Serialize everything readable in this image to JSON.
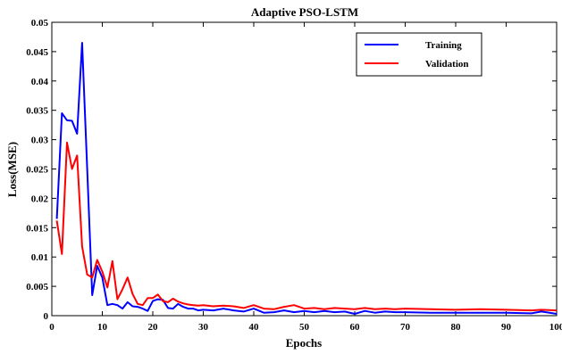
{
  "chart_data": {
    "type": "line",
    "title": "Adaptive PSO-LSTM",
    "xlabel": "Epochs",
    "ylabel": "Loss(MSE)",
    "xlim": [
      0,
      100
    ],
    "ylim": [
      0,
      0.05
    ],
    "xticks": [
      0,
      10,
      20,
      30,
      40,
      50,
      60,
      70,
      80,
      90,
      100
    ],
    "xtick_labels": [
      "0",
      "10",
      "20",
      "30",
      "40",
      "50",
      "60",
      "70",
      "80",
      "90",
      "100"
    ],
    "yticks": [
      0,
      0.005,
      0.01,
      0.015,
      0.02,
      0.025,
      0.03,
      0.035,
      0.04,
      0.045,
      0.05
    ],
    "ytick_labels": [
      "0",
      "0.005",
      "0.01",
      "0.015",
      "0.02",
      "0.025",
      "0.03",
      "0.035",
      "0.04",
      "0.045",
      "0.05"
    ],
    "grid": false,
    "legend_position": "top-right",
    "series": [
      {
        "name": "Training",
        "color": "#0000ff",
        "x": [
          1,
          2,
          3,
          4,
          5,
          6,
          7,
          8,
          9,
          10,
          11,
          12,
          13,
          14,
          15,
          16,
          17,
          18,
          19,
          20,
          21,
          22,
          23,
          24,
          25,
          26,
          27,
          28,
          29,
          30,
          32,
          34,
          36,
          38,
          40,
          42,
          44,
          46,
          48,
          50,
          52,
          54,
          56,
          58,
          60,
          62,
          64,
          66,
          68,
          70,
          75,
          80,
          85,
          90,
          95,
          97,
          100
        ],
        "y": [
          0.0165,
          0.0345,
          0.0333,
          0.0332,
          0.031,
          0.0465,
          0.025,
          0.0035,
          0.0085,
          0.0065,
          0.0018,
          0.002,
          0.0018,
          0.0012,
          0.0023,
          0.0016,
          0.0015,
          0.0012,
          0.0008,
          0.0025,
          0.0028,
          0.0027,
          0.0013,
          0.0012,
          0.002,
          0.0015,
          0.0012,
          0.0012,
          0.0009,
          0.001,
          0.0009,
          0.0012,
          0.0009,
          0.0007,
          0.0012,
          0.0005,
          0.0006,
          0.0009,
          0.0006,
          0.0008,
          0.0006,
          0.0008,
          0.0006,
          0.0007,
          0.0003,
          0.0008,
          0.0005,
          0.0007,
          0.0006,
          0.0006,
          0.0005,
          0.0005,
          0.0005,
          0.0005,
          0.0004,
          0.0007,
          0.0003
        ]
      },
      {
        "name": "Validation",
        "color": "#ff0000",
        "x": [
          1,
          2,
          3,
          4,
          5,
          6,
          7,
          8,
          9,
          10,
          11,
          12,
          13,
          14,
          15,
          16,
          17,
          18,
          19,
          20,
          21,
          22,
          23,
          24,
          25,
          26,
          27,
          28,
          29,
          30,
          32,
          34,
          36,
          38,
          40,
          42,
          44,
          46,
          48,
          50,
          52,
          54,
          56,
          58,
          60,
          62,
          64,
          66,
          68,
          70,
          75,
          80,
          85,
          90,
          95,
          97,
          100
        ],
        "y": [
          0.0162,
          0.0105,
          0.0295,
          0.025,
          0.0273,
          0.0118,
          0.007,
          0.0065,
          0.0095,
          0.0075,
          0.0048,
          0.0093,
          0.0028,
          0.0045,
          0.0065,
          0.0037,
          0.002,
          0.0018,
          0.003,
          0.003,
          0.0036,
          0.0025,
          0.0023,
          0.0029,
          0.0024,
          0.0021,
          0.0019,
          0.0018,
          0.0017,
          0.0018,
          0.0016,
          0.0017,
          0.0016,
          0.0013,
          0.0018,
          0.0012,
          0.0011,
          0.0015,
          0.0018,
          0.0012,
          0.0013,
          0.0011,
          0.0013,
          0.0012,
          0.0011,
          0.0013,
          0.0011,
          0.0012,
          0.0011,
          0.0012,
          0.0011,
          0.001,
          0.0011,
          0.001,
          0.0009,
          0.001,
          0.0009
        ]
      }
    ]
  }
}
